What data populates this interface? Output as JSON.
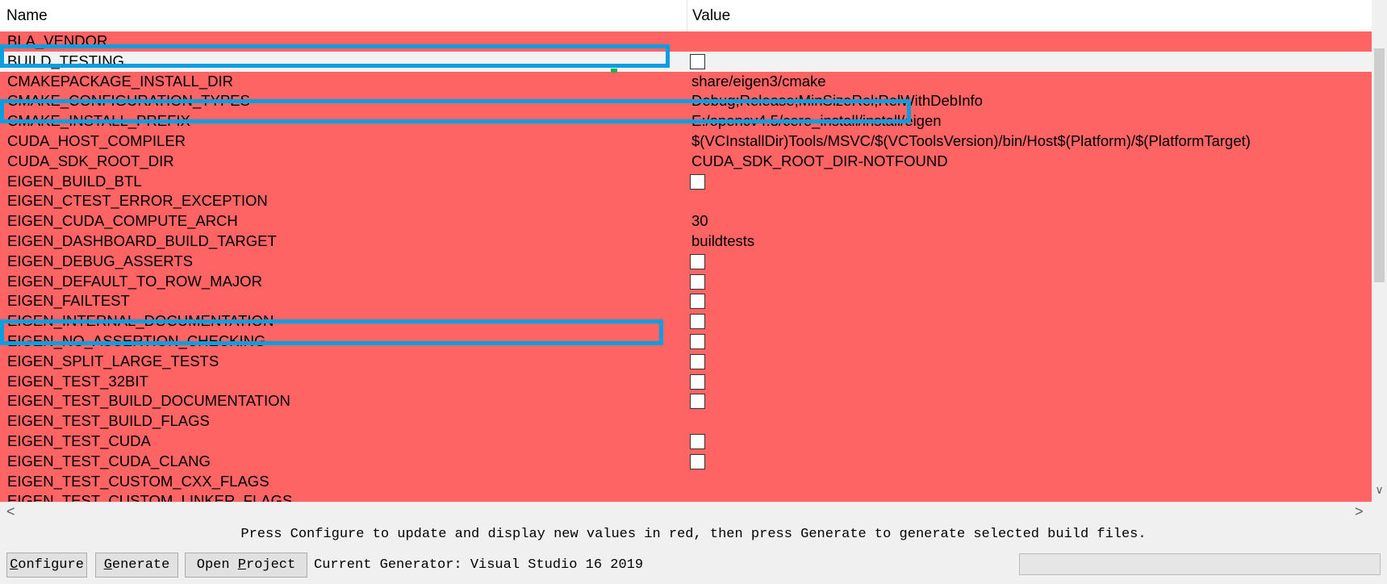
{
  "table": {
    "columns": [
      "Name",
      "Value"
    ],
    "rows": [
      {
        "name": "BLA_VENDOR",
        "value": ""
      },
      {
        "name": "BUILD_TESTING",
        "checkbox": true
      },
      {
        "name": "CMAKEPACKAGE_INSTALL_DIR",
        "value": "share/eigen3/cmake"
      },
      {
        "name": "CMAKE_CONFIGURATION_TYPES",
        "value": "Debug;Release;MinSizeRel;RelWithDebInfo"
      },
      {
        "name": "CMAKE_INSTALL_PREFIX",
        "value": "E:/opencv4.5/cere_install/install/eigen"
      },
      {
        "name": "CUDA_HOST_COMPILER",
        "value": "$(VCInstallDir)Tools/MSVC/$(VCToolsVersion)/bin/Host$(Platform)/$(PlatformTarget)"
      },
      {
        "name": "CUDA_SDK_ROOT_DIR",
        "value": "CUDA_SDK_ROOT_DIR-NOTFOUND"
      },
      {
        "name": "EIGEN_BUILD_BTL",
        "checkbox": true
      },
      {
        "name": "EIGEN_CTEST_ERROR_EXCEPTION",
        "value": ""
      },
      {
        "name": "EIGEN_CUDA_COMPUTE_ARCH",
        "value": "30"
      },
      {
        "name": "EIGEN_DASHBOARD_BUILD_TARGET",
        "value": "buildtests"
      },
      {
        "name": "EIGEN_DEBUG_ASSERTS",
        "checkbox": true
      },
      {
        "name": "EIGEN_DEFAULT_TO_ROW_MAJOR",
        "checkbox": true
      },
      {
        "name": "EIGEN_FAILTEST",
        "checkbox": true
      },
      {
        "name": "EIGEN_INTERNAL_DOCUMENTATION",
        "checkbox": true
      },
      {
        "name": "EIGEN_NO_ASSERTION_CHECKING",
        "checkbox": true
      },
      {
        "name": "EIGEN_SPLIT_LARGE_TESTS",
        "checkbox": true
      },
      {
        "name": "EIGEN_TEST_32BIT",
        "checkbox": true
      },
      {
        "name": "EIGEN_TEST_BUILD_DOCUMENTATION",
        "checkbox": true
      },
      {
        "name": "EIGEN_TEST_BUILD_FLAGS",
        "value": ""
      },
      {
        "name": "EIGEN_TEST_CUDA",
        "checkbox": true
      },
      {
        "name": "EIGEN_TEST_CUDA_CLANG",
        "checkbox": true
      },
      {
        "name": "EIGEN_TEST_CUSTOM_CXX_FLAGS",
        "value": ""
      },
      {
        "name": "EIGEN_TEST_CUSTOM_LINKER_FLAGS",
        "value": ""
      }
    ]
  },
  "status_message": "Press Configure to update and display new values in red, then press Generate to generate selected build files.",
  "buttons": {
    "configure": {
      "pre": "",
      "key": "C",
      "post": "onfigure"
    },
    "generate": {
      "pre": "",
      "key": "G",
      "post": "enerate"
    },
    "open_project": {
      "pre": "Open ",
      "key": "P",
      "post": "roject"
    }
  },
  "generator_label": "Current Generator: Visual Studio 16 2019",
  "colors": {
    "changed_row": "#ff6464",
    "selected_row": "#f2f2f2",
    "highlight_box": "#0a9ee0"
  },
  "icons": {
    "scroll_down": "chevron-down-icon",
    "scroll_left": "chevron-left-icon",
    "scroll_right": "chevron-right-icon"
  }
}
